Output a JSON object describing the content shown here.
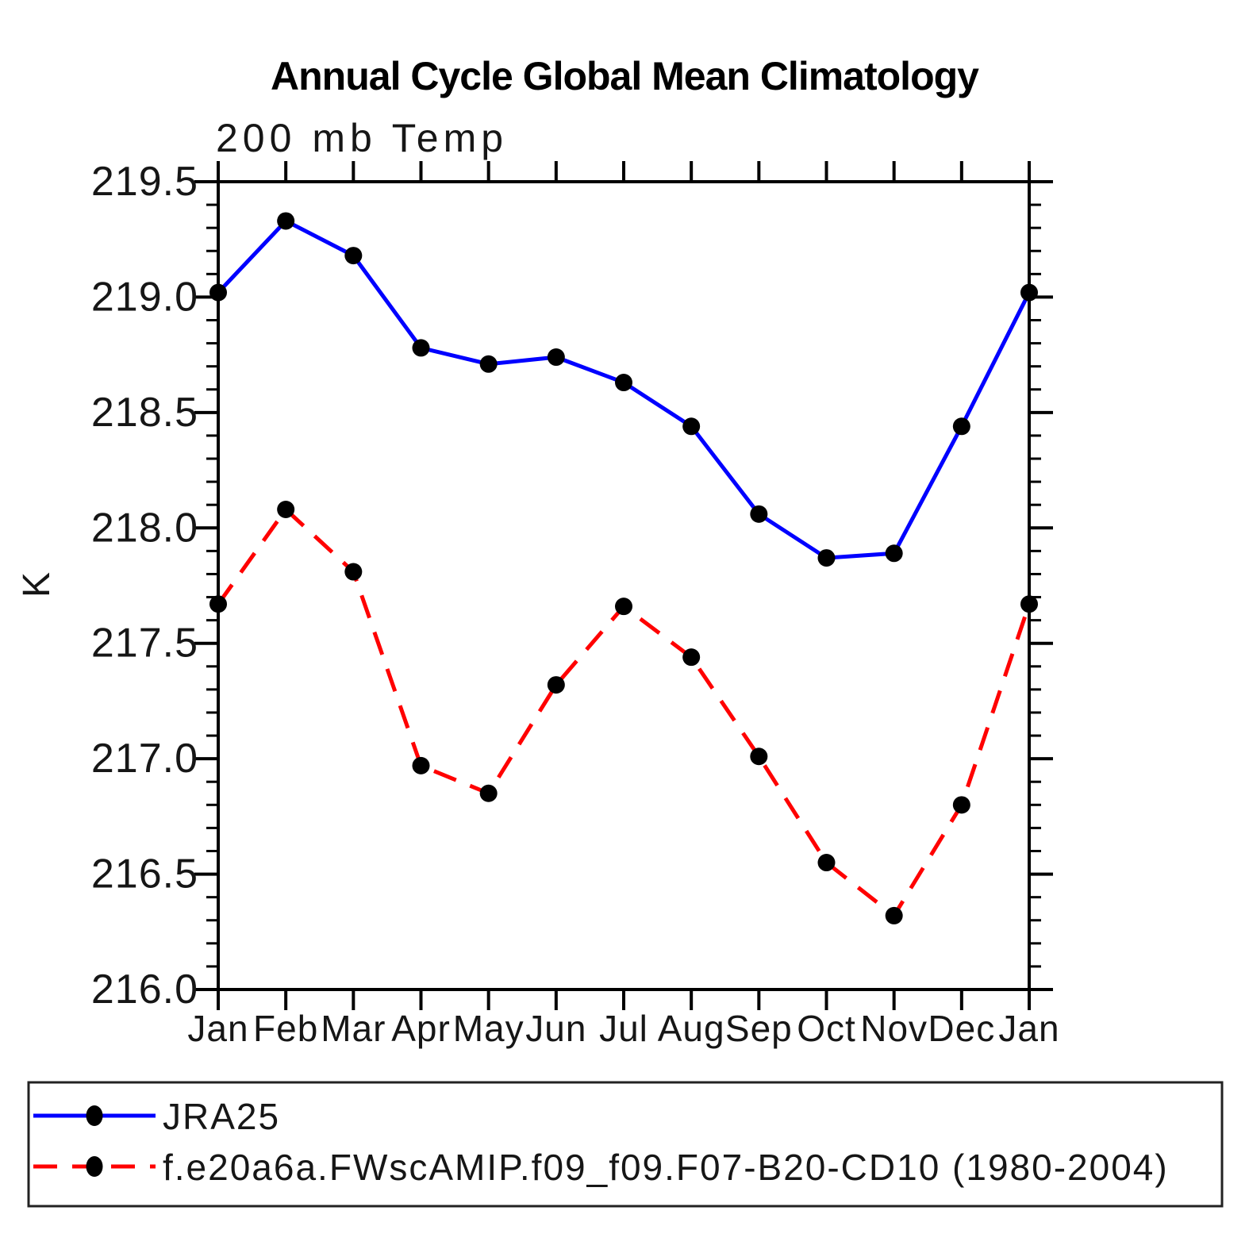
{
  "header": {
    "title": "Annual Cycle Global Mean Climatology",
    "subtitle": "200 mb Temp"
  },
  "axes": {
    "y_unit": "K",
    "y_tick_labels": [
      "219.5",
      "219.0",
      "218.5",
      "218.0",
      "217.5",
      "217.0",
      "216.5",
      "216.0"
    ],
    "y_tick_values": [
      219.5,
      219.0,
      218.5,
      218.0,
      217.5,
      217.0,
      216.5,
      216.0
    ],
    "y_minor_step": 0.1,
    "x_tick_labels": [
      "Jan",
      "Feb",
      "Mar",
      "Apr",
      "May",
      "Jun",
      "Jul",
      "Aug",
      "Sep",
      "Oct",
      "Nov",
      "Dec",
      "Jan"
    ]
  },
  "chart_data": {
    "type": "line",
    "title": "Annual Cycle Global Mean Climatology",
    "subtitle": "200 mb Temp",
    "ylabel": "K",
    "ylim": [
      216.0,
      219.5
    ],
    "y_major_step": 0.5,
    "y_minor_step": 0.1,
    "grid": false,
    "legend_position": "bottom",
    "x_categories": [
      "Jan",
      "Feb",
      "Mar",
      "Apr",
      "May",
      "Jun",
      "Jul",
      "Aug",
      "Sep",
      "Oct",
      "Nov",
      "Dec",
      "Jan"
    ],
    "series": [
      {
        "name": "JRA25",
        "color": "#0000ff",
        "line_style": "solid",
        "marker": "filled-circle",
        "marker_color": "#000000",
        "values": [
          219.02,
          219.33,
          219.18,
          218.78,
          218.71,
          218.74,
          218.63,
          218.44,
          218.06,
          217.87,
          217.89,
          218.44,
          219.02
        ]
      },
      {
        "name": "f.e20a6a.FWscAMIP.f09_f09.F07-B20-CD10 (1980-2004)",
        "color": "#ff0000",
        "line_style": "dashed",
        "marker": "filled-circle",
        "marker_color": "#000000",
        "values": [
          217.67,
          218.08,
          217.81,
          216.97,
          216.85,
          217.32,
          217.66,
          217.44,
          217.01,
          216.55,
          216.32,
          216.8,
          217.67
        ]
      }
    ]
  }
}
